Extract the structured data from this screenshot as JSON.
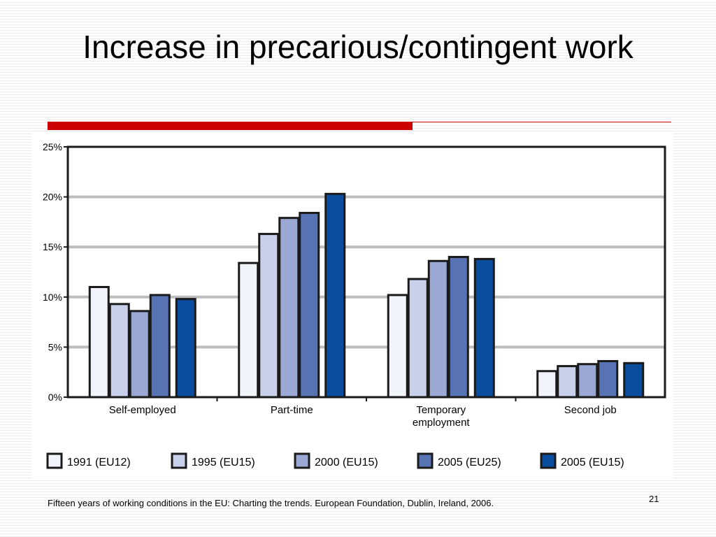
{
  "slide": {
    "title": "Increase in precarious/contingent work",
    "citation": "Fifteen years of working conditions in the EU: Charting the trends. European Foundation, Dublin, Ireland, 2006.",
    "page_number": "21"
  },
  "colors": {
    "accent_red": "#cc0000",
    "bar_outline": "#1a1a1a",
    "grid": "#bdbdbd"
  },
  "chart_data": {
    "type": "bar",
    "title": "",
    "xlabel": "",
    "ylabel": "",
    "ylim": [
      0,
      25
    ],
    "yticks": [
      0,
      5,
      10,
      15,
      20,
      25
    ],
    "ytick_labels": [
      "0%",
      "5%",
      "10%",
      "15%",
      "20%",
      "25%"
    ],
    "grid": true,
    "legend_position": "bottom",
    "categories": [
      [
        "Self-employed"
      ],
      [
        "Part-time"
      ],
      [
        "Temporary",
        "employment"
      ],
      [
        "Second job"
      ]
    ],
    "series": [
      {
        "name": "1991 (EU12)",
        "color": "#f2f4fb",
        "values": [
          11.0,
          13.4,
          10.2,
          2.6
        ]
      },
      {
        "name": "1995 (EU15)",
        "color": "#c9d0e9",
        "values": [
          9.3,
          16.3,
          11.8,
          3.1
        ]
      },
      {
        "name": "2000 (EU15)",
        "color": "#9aa8d3",
        "values": [
          8.6,
          17.9,
          13.6,
          3.3
        ]
      },
      {
        "name": "2005 (EU25)",
        "color": "#5873b4",
        "values": [
          10.2,
          18.4,
          14.0,
          3.6
        ]
      },
      {
        "name": "2005 (EU15)",
        "color": "#0a4d9f",
        "values": [
          9.8,
          20.3,
          13.8,
          3.4
        ]
      }
    ]
  }
}
